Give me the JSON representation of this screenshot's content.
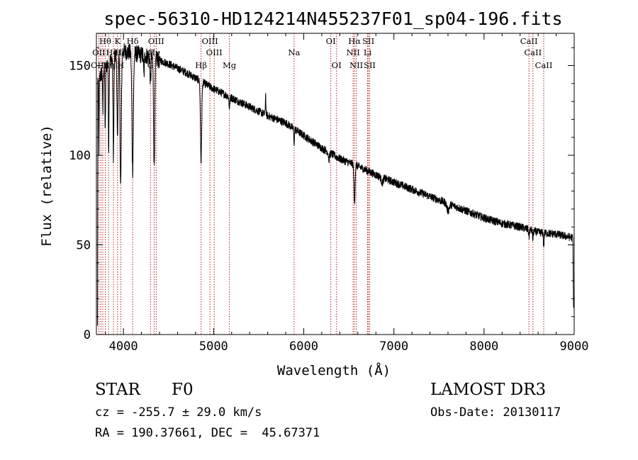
{
  "chart_data": {
    "type": "line",
    "title": "spec-56310-HD124214N455237F01_sp04-196.fits",
    "xlabel": "Wavelength (Å)",
    "ylabel": "Flux (relative)",
    "xlim": [
      3700,
      9000
    ],
    "ylim": [
      0,
      168
    ],
    "xticks": [
      4000,
      5000,
      6000,
      7000,
      8000,
      9000
    ],
    "yticks": [
      0,
      50,
      100,
      150
    ],
    "continuum": {
      "x": [
        3700,
        3800,
        3900,
        4000,
        4100,
        4200,
        4300,
        4400,
        4500,
        4700,
        4900,
        5000,
        5200,
        5400,
        5600,
        5800,
        6000,
        6200,
        6400,
        6600,
        6800,
        7000,
        7200,
        7400,
        7600,
        7800,
        8000,
        8200,
        8400,
        8600,
        8800,
        8980
      ],
      "y": [
        140,
        150,
        155,
        158,
        157,
        156,
        155,
        153,
        151,
        146,
        140,
        137,
        132,
        127,
        122,
        118,
        111,
        104,
        98,
        94,
        89,
        85,
        81,
        77,
        73,
        69,
        65,
        62,
        60,
        57,
        56,
        54
      ]
    },
    "absorption_lines": [
      {
        "center": 3728,
        "depth": 40,
        "width": 3
      },
      {
        "center": 3771,
        "depth": 25,
        "width": 3
      },
      {
        "center": 3798,
        "depth": 38,
        "width": 4
      },
      {
        "center": 3836,
        "depth": 48,
        "width": 4
      },
      {
        "center": 3889,
        "depth": 55,
        "width": 5
      },
      {
        "center": 3934,
        "depth": 45,
        "width": 6
      },
      {
        "center": 3969,
        "depth": 75,
        "width": 7
      },
      {
        "center": 4102,
        "depth": 65,
        "width": 8
      },
      {
        "center": 4227,
        "depth": 12,
        "width": 4
      },
      {
        "center": 4300,
        "depth": 15,
        "width": 5
      },
      {
        "center": 4341,
        "depth": 60,
        "width": 7
      },
      {
        "center": 4861,
        "depth": 45,
        "width": 7
      },
      {
        "center": 5175,
        "depth": 6,
        "width": 5
      },
      {
        "center": 5893,
        "depth": 8,
        "width": 4
      },
      {
        "center": 6280,
        "depth": 4,
        "width": 6
      },
      {
        "center": 6563,
        "depth": 22,
        "width": 6
      },
      {
        "center": 6870,
        "depth": 3,
        "width": 10
      },
      {
        "center": 7600,
        "depth": 4,
        "width": 12
      },
      {
        "center": 8498,
        "depth": 4,
        "width": 4
      },
      {
        "center": 8542,
        "depth": 5,
        "width": 4
      },
      {
        "center": 8662,
        "depth": 8,
        "width": 4
      }
    ],
    "emission_spikes": [
      {
        "center": 5577,
        "height": 12,
        "width": 3
      }
    ],
    "edge_drop": {
      "x": 8985,
      "y": 15
    },
    "blue_edge_drop": {
      "x": 3712,
      "y": 5
    },
    "noise_amplitude": 2.2,
    "line_markers": [
      {
        "label": "Hθ",
        "wavelength": 3798,
        "row": 1
      },
      {
        "label": "K",
        "wavelength": 3934,
        "row": 1
      },
      {
        "label": "Hδ",
        "wavelength": 4102,
        "row": 1
      },
      {
        "label": "OIII",
        "wavelength": 4363,
        "row": 1
      },
      {
        "label": "OIII",
        "wavelength": 4959,
        "row": 1
      },
      {
        "label": "OI",
        "wavelength": 6300,
        "row": 1
      },
      {
        "label": "Hα",
        "wavelength": 6563,
        "row": 1
      },
      {
        "label": "SII",
        "wavelength": 6717,
        "row": 1
      },
      {
        "label": "CaII",
        "wavelength": 8498,
        "row": 1
      },
      {
        "label": "OII",
        "wavelength": 3727,
        "row": 2
      },
      {
        "label": "Hε",
        "wavelength": 3970,
        "row": 2
      },
      {
        "label": "HeI",
        "wavelength": 3889,
        "row": 2
      },
      {
        "label": "Hγ",
        "wavelength": 4341,
        "row": 2
      },
      {
        "label": "OIII",
        "wavelength": 5007,
        "row": 2
      },
      {
        "label": "Na",
        "wavelength": 5893,
        "row": 2
      },
      {
        "label": "NII",
        "wavelength": 6548,
        "row": 2
      },
      {
        "label": "Li",
        "wavelength": 6708,
        "row": 2
      },
      {
        "label": "CaII",
        "wavelength": 8542,
        "row": 2
      },
      {
        "label": "OIII",
        "wavelength": 3728,
        "row": 3
      },
      {
        "label": "Hη",
        "wavelength": 3835,
        "row": 3
      },
      {
        "label": "H",
        "wavelength": 3968,
        "row": 3
      },
      {
        "label": "G",
        "wavelength": 4300,
        "row": 3
      },
      {
        "label": "Hβ",
        "wavelength": 4861,
        "row": 3
      },
      {
        "label": "Mg",
        "wavelength": 5175,
        "row": 3
      },
      {
        "label": "OI",
        "wavelength": 6364,
        "row": 3
      },
      {
        "label": "NII",
        "wavelength": 6583,
        "row": 3
      },
      {
        "label": "SII",
        "wavelength": 6731,
        "row": 3
      },
      {
        "label": "CaII",
        "wavelength": 8662,
        "row": 3
      }
    ],
    "extra_marker_lines": [
      3750,
      3771,
      3889,
      3970,
      4102,
      4341
    ]
  },
  "info": {
    "class_label": "STAR",
    "subclass": "F0",
    "survey": "LAMOST DR3",
    "cz_text": "cz = -255.7 ± 29.0 km/s",
    "obs_date_text": "Obs-Date: 20130117",
    "coords_text": "RA = 190.37661, DEC =  45.67371"
  },
  "colors": {
    "spectrum": "#000000",
    "marker_lines": "#b22222",
    "axes": "#000000",
    "background": "#ffffff"
  }
}
